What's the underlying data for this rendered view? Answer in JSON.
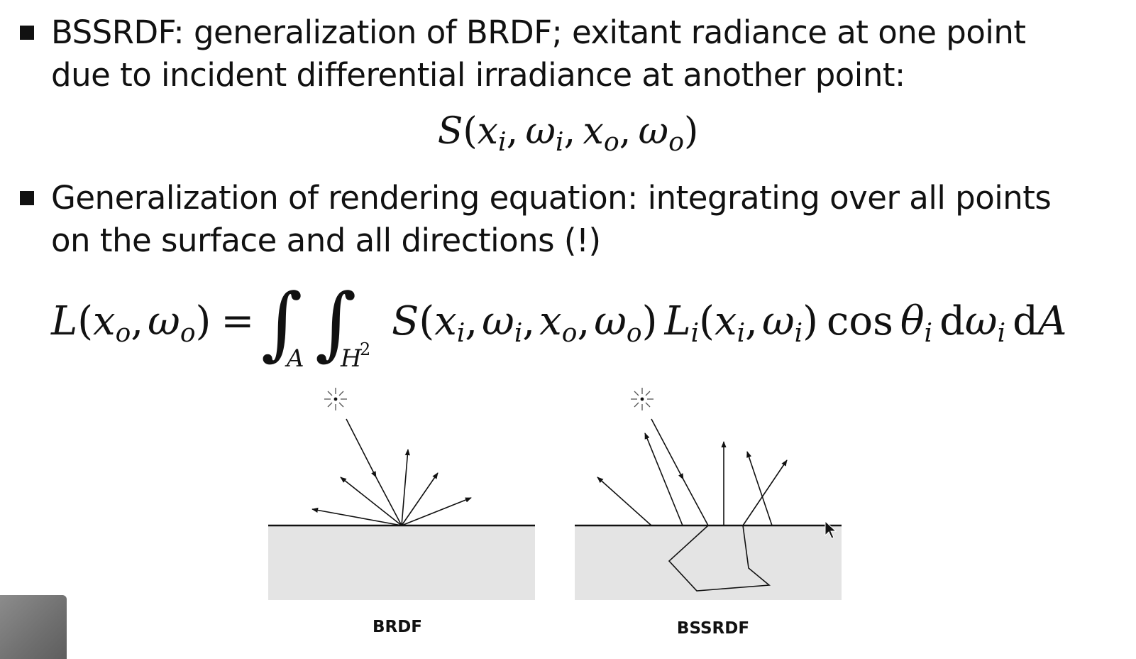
{
  "bullets": [
    {
      "text": "BSSRDF: generalization of BRDF; exitant radiance at one point due to incident differential irradiance at another point:"
    },
    {
      "text": "Generalization of rendering equation: integrating over all points on the surface and all directions (!)"
    }
  ],
  "formulas": {
    "bssrdf_function": "S(x_i, ω_i, x_o, ω_o)",
    "rendering_equation": "L(x_o, ω_o) = ∫_A ∫_{H^2} S(x_i, ω_i, x_o, ω_o) L_i(x_i, ω_i) cos θ_i dω_i dA"
  },
  "diagrams": {
    "brdf_label": "BRDF",
    "bssrdf_label": "BSSRDF"
  },
  "colors": {
    "text": "#111111",
    "material_fill": "#e4e4e4",
    "background": "#ffffff"
  }
}
